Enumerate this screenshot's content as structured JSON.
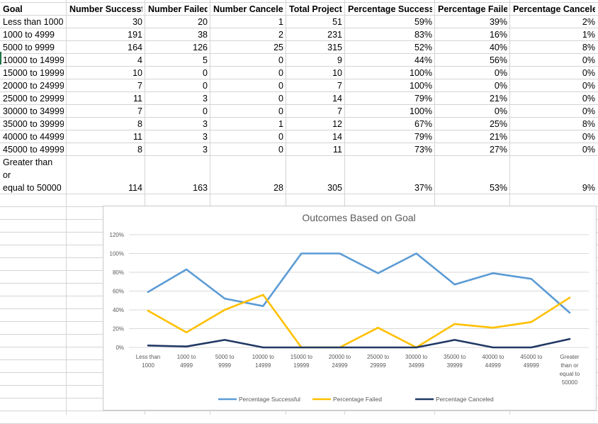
{
  "sheet": {
    "headers": [
      "Goal",
      "Number Successful",
      "Number Failed",
      "Number Canceled",
      "Total Projects",
      "Percentage Successful",
      "Percentage Failed",
      "Percentage Canceled"
    ],
    "rows": [
      [
        "Less than 1000",
        "30",
        "20",
        "1",
        "51",
        "59%",
        "39%",
        "2%"
      ],
      [
        "1000 to 4999",
        "191",
        "38",
        "2",
        "231",
        "83%",
        "16%",
        "1%"
      ],
      [
        "5000 to 9999",
        "164",
        "126",
        "25",
        "315",
        "52%",
        "40%",
        "8%"
      ],
      [
        "10000 to 14999",
        "4",
        "5",
        "0",
        "9",
        "44%",
        "56%",
        "0%"
      ],
      [
        "15000 to 19999",
        "10",
        "0",
        "0",
        "10",
        "100%",
        "0%",
        "0%"
      ],
      [
        "20000 to 24999",
        "7",
        "0",
        "0",
        "7",
        "100%",
        "0%",
        "0%"
      ],
      [
        "25000 to 29999",
        "11",
        "3",
        "0",
        "14",
        "79%",
        "21%",
        "0%"
      ],
      [
        "30000 to 34999",
        "7",
        "0",
        "0",
        "7",
        "100%",
        "0%",
        "0%"
      ],
      [
        "35000 to 39999",
        "8",
        "3",
        "1",
        "12",
        "67%",
        "25%",
        "8%"
      ],
      [
        "40000 to 44999",
        "11",
        "3",
        "0",
        "14",
        "79%",
        "21%",
        "0%"
      ],
      [
        "45000 to 49999",
        "8",
        "3",
        "0",
        "11",
        "73%",
        "27%",
        "0%"
      ]
    ],
    "last_row": {
      "goal_lines": [
        "Greater than",
        "or",
        "equal to 50000"
      ],
      "values": [
        "114",
        "163",
        "28",
        "305",
        "37%",
        "53%",
        "9%"
      ]
    }
  },
  "chart_data": {
    "type": "line",
    "title": "Outcomes Based on Goal",
    "categories": [
      "Less than 1000",
      "1000 to 4999",
      "5000 to 9999",
      "10000 to 14999",
      "15000 to 19999",
      "20000 to 24999",
      "25000 to 29999",
      "30000 to 34999",
      "35000 to 39999",
      "40000 to 44999",
      "45000 to 49999",
      "Greater than or equal to 50000"
    ],
    "category_lines": [
      [
        "Less than",
        "1000"
      ],
      [
        "1000 to",
        "4999"
      ],
      [
        "5000 to",
        "9999"
      ],
      [
        "10000 to",
        "14999"
      ],
      [
        "15000 to",
        "19999"
      ],
      [
        "20000 to",
        "24999"
      ],
      [
        "25000 to",
        "29999"
      ],
      [
        "30000 to",
        "34999"
      ],
      [
        "35000 to",
        "39999"
      ],
      [
        "40000 to",
        "44999"
      ],
      [
        "45000 to",
        "49999"
      ],
      [
        "Greater",
        "than or",
        "equal to",
        "50000"
      ]
    ],
    "series": [
      {
        "name": "Percentage Successful",
        "color": "#5b9bd5",
        "values": [
          59,
          83,
          52,
          44,
          100,
          100,
          79,
          100,
          67,
          79,
          73,
          37
        ]
      },
      {
        "name": "Percentage Failed",
        "color": "#ffc000",
        "values": [
          39,
          16,
          40,
          56,
          0,
          0,
          21,
          0,
          25,
          21,
          27,
          53
        ]
      },
      {
        "name": "Percentage Canceled",
        "color": "#203864",
        "values": [
          2,
          1,
          8,
          0,
          0,
          0,
          0,
          0,
          8,
          0,
          0,
          9
        ]
      }
    ],
    "yticks": [
      "0%",
      "20%",
      "40%",
      "60%",
      "80%",
      "100%",
      "120%"
    ],
    "ylim": [
      0,
      120
    ],
    "grid": true,
    "legend": "bottom"
  }
}
